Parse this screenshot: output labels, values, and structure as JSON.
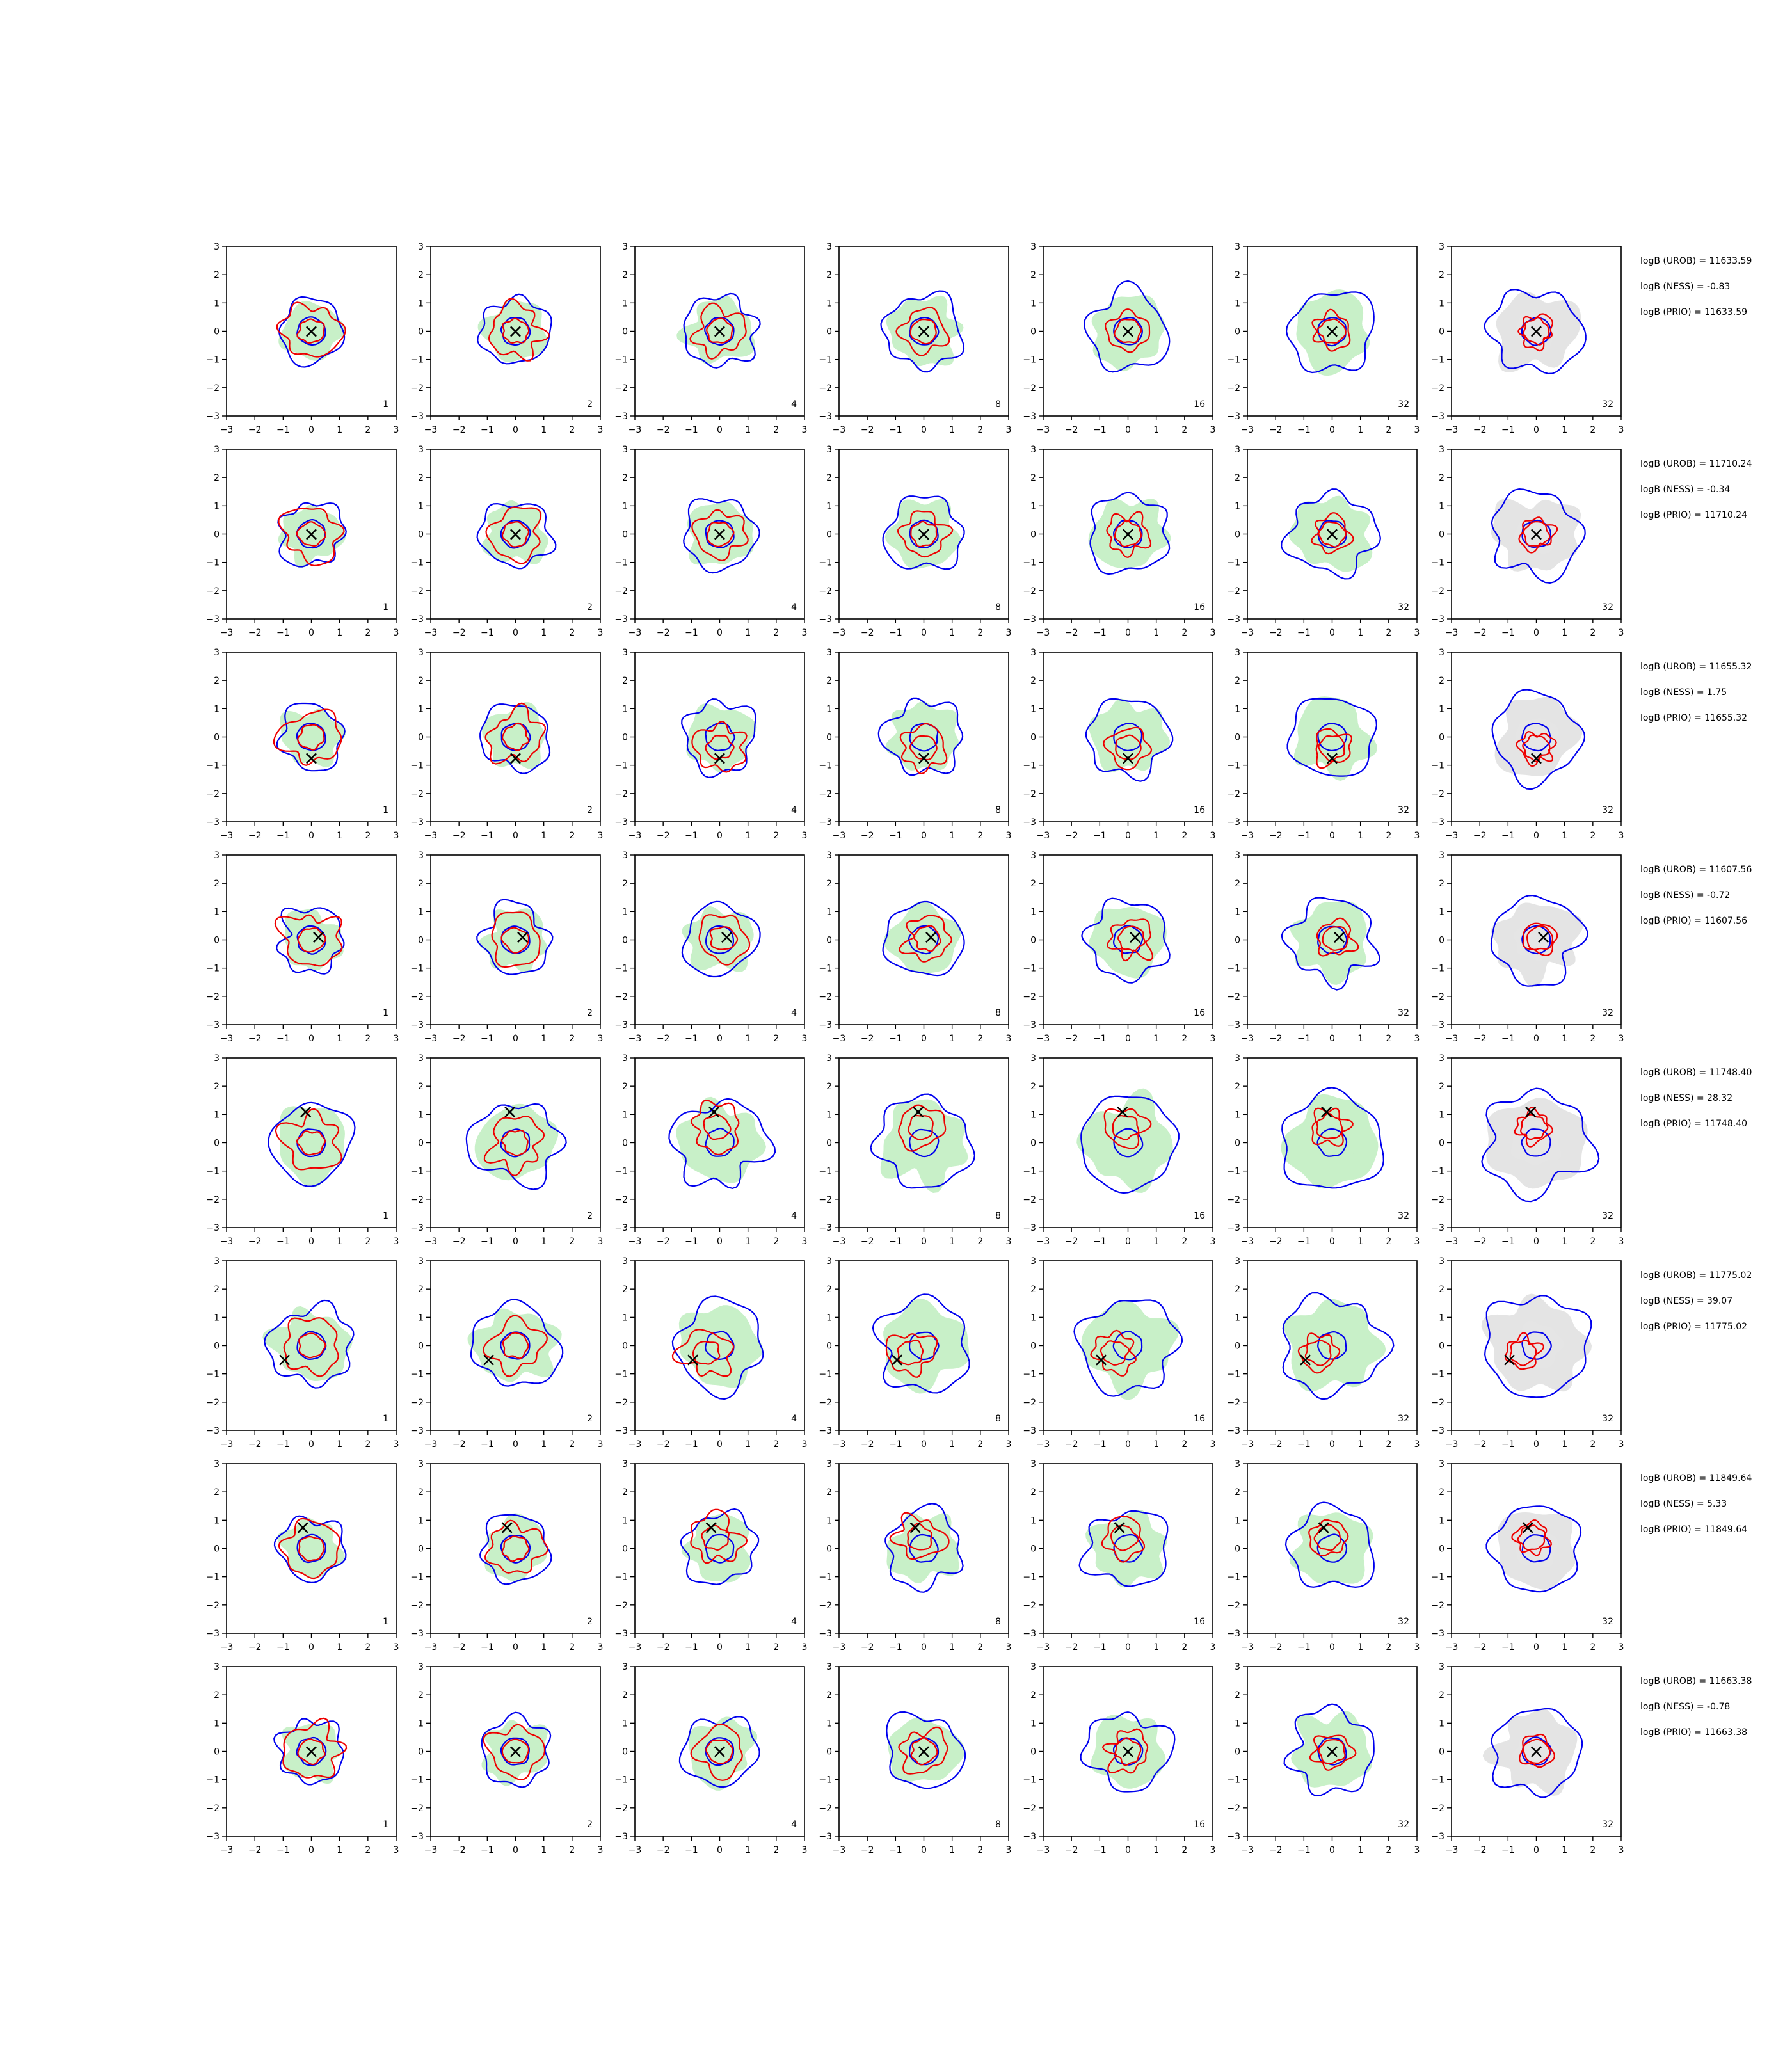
{
  "chart_data": {
    "type": "scatter",
    "title": "",
    "layout": "grid of 8 rows by 7 contour panels with per-row annotation text on the right",
    "xlim": [
      -3,
      3
    ],
    "ylim": [
      -3,
      3
    ],
    "tick_labels": [
      "−3",
      "−2",
      "−1",
      "0",
      "1",
      "2",
      "3"
    ],
    "grid": false,
    "legend": "none",
    "series_colors": {
      "filled_contours": "#c8f0c8",
      "filled_contours_last_column": "#e4e4e4",
      "contour_line_a": "#0000ee",
      "contour_line_b": "#ee0000",
      "marker": "#000000"
    },
    "marker_symbol": "×",
    "panel_labels": [
      "1",
      "2",
      "4",
      "8",
      "16",
      "32",
      "32"
    ],
    "rows": [
      {
        "marker": {
          "x": 0.0,
          "y": 0.0
        },
        "annotations": [
          "logB (UROB) = 11633.59",
          "logB (NESS) = -0.83",
          "logB (PRIO) = 11633.59"
        ]
      },
      {
        "marker": {
          "x": 0.0,
          "y": 0.0
        },
        "annotations": [
          "logB (UROB) = 11710.24",
          "logB (NESS) = -0.34",
          "logB (PRIO) = 11710.24"
        ]
      },
      {
        "marker": {
          "x": 0.0,
          "y": -0.75
        },
        "annotations": [
          "logB (UROB) = 11655.32",
          "logB (NESS) = 1.75",
          "logB (PRIO) = 11655.32"
        ]
      },
      {
        "marker": {
          "x": 0.25,
          "y": 0.1
        },
        "annotations": [
          "logB (UROB) = 11607.56",
          "logB (NESS) = -0.72",
          "logB (PRIO) = 11607.56"
        ]
      },
      {
        "marker": {
          "x": -0.2,
          "y": 1.1
        },
        "annotations": [
          "logB (UROB) = 11748.40",
          "logB (NESS) = 28.32",
          "logB (PRIO) = 11748.40"
        ]
      },
      {
        "marker": {
          "x": -0.95,
          "y": -0.5
        },
        "annotations": [
          "logB (UROB) = 11775.02",
          "logB (NESS) = 39.07",
          "logB (PRIO) = 11775.02"
        ]
      },
      {
        "marker": {
          "x": -0.3,
          "y": 0.75
        },
        "annotations": [
          "logB (UROB) = 11849.64",
          "logB (NESS) = 5.33",
          "logB (PRIO) = 11849.64"
        ]
      },
      {
        "marker": {
          "x": 0.0,
          "y": 0.0
        },
        "annotations": [
          "logB (UROB) = 11663.38",
          "logB (NESS) = -0.78",
          "logB (PRIO) = 11663.38"
        ]
      }
    ]
  }
}
